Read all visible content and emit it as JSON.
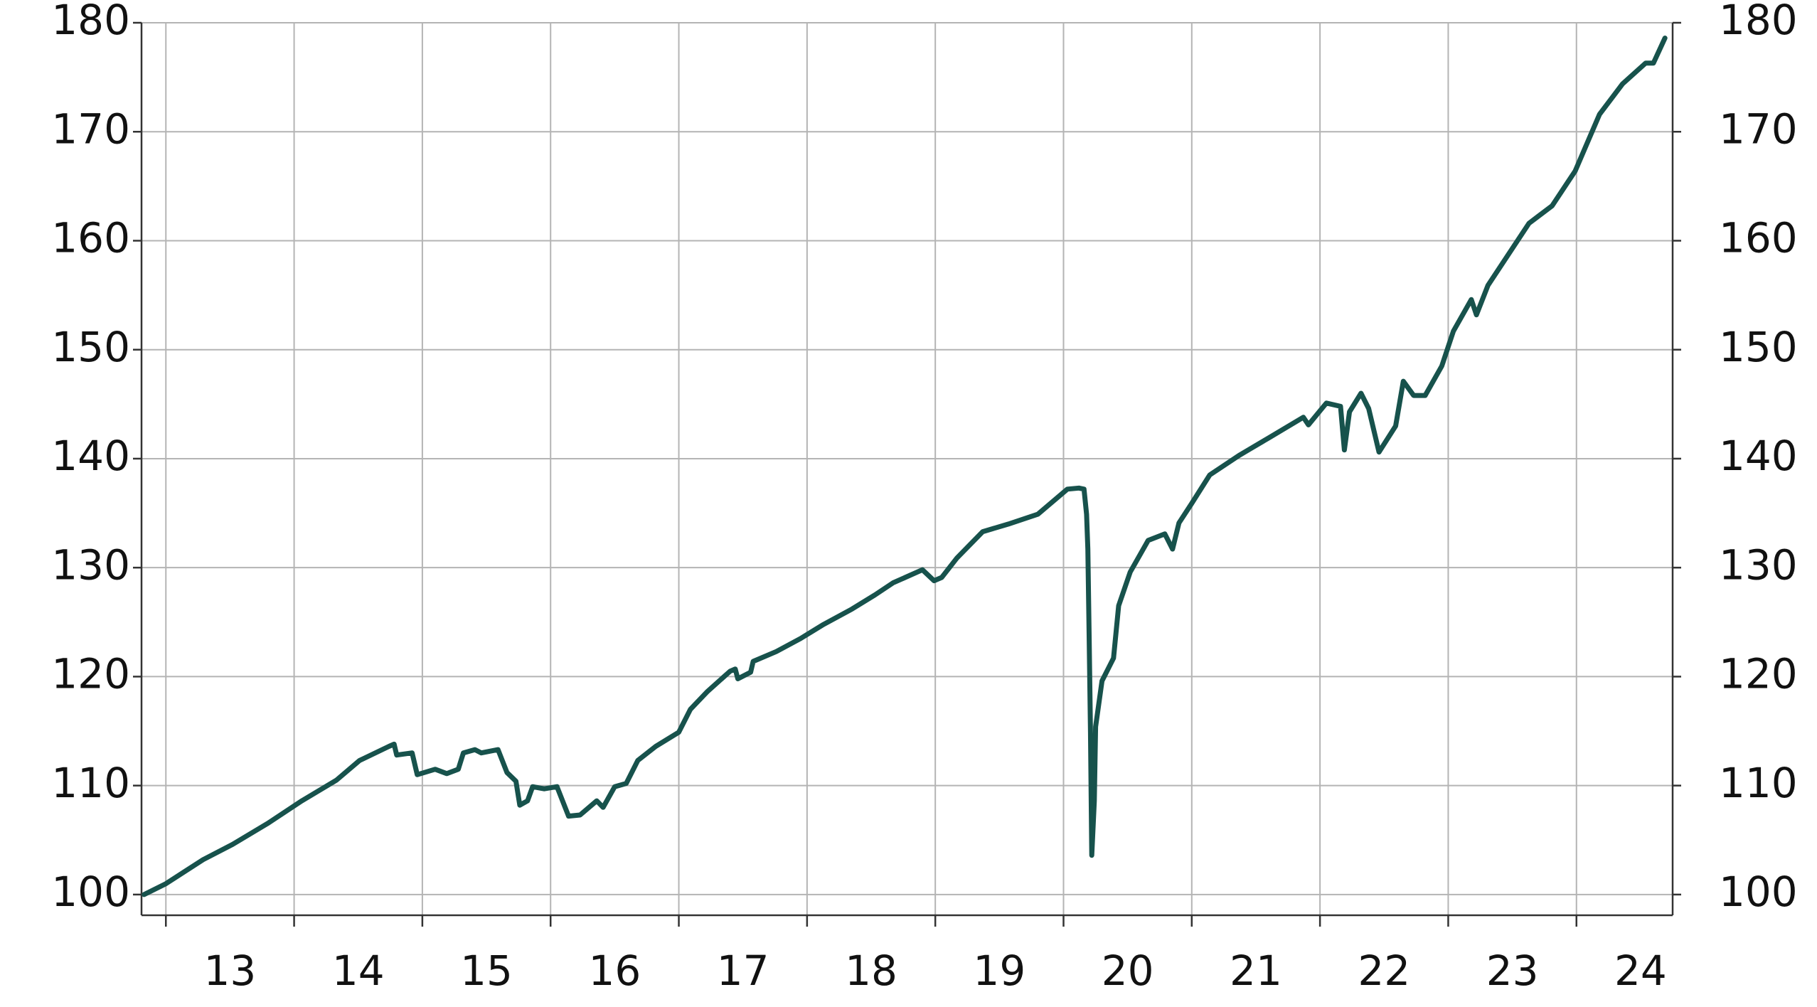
{
  "chart_data": {
    "type": "line",
    "x": [
      12.83,
      13.0,
      13.29,
      13.52,
      13.79,
      14.06,
      14.33,
      14.51,
      14.74,
      14.78,
      14.8,
      14.92,
      14.96,
      15.1,
      15.19,
      15.28,
      15.32,
      15.41,
      15.46,
      15.59,
      15.66,
      15.73,
      15.76,
      15.82,
      15.86,
      15.95,
      16.05,
      16.14,
      16.23,
      16.36,
      16.41,
      16.5,
      16.59,
      16.68,
      16.82,
      17.0,
      17.09,
      17.22,
      17.4,
      17.44,
      17.46,
      17.56,
      17.58,
      17.76,
      17.95,
      18.13,
      18.35,
      18.53,
      18.67,
      18.9,
      18.99,
      19.05,
      19.17,
      19.37,
      19.57,
      19.8,
      20.03,
      20.12,
      20.16,
      20.18,
      20.19,
      20.2,
      20.21,
      20.22,
      20.24,
      20.25,
      20.3,
      20.39,
      20.43,
      20.52,
      20.66,
      20.79,
      20.85,
      20.9,
      21.0,
      21.14,
      21.37,
      21.6,
      21.87,
      21.91,
      22.05,
      22.16,
      22.19,
      22.23,
      22.32,
      22.38,
      22.46,
      22.59,
      22.65,
      22.73,
      22.82,
      22.95,
      23.04,
      23.18,
      23.22,
      23.31,
      23.63,
      23.81,
      23.99,
      24.18,
      24.36,
      24.54,
      24.6,
      24.69
    ],
    "series": [
      {
        "color": "#17524c",
        "values": [
          100,
          101,
          103.2,
          104.6,
          106.5,
          108.6,
          110.5,
          112.3,
          113.6,
          113.8,
          112.8,
          113,
          111,
          111.5,
          111.1,
          111.5,
          113,
          113.3,
          113,
          113.3,
          111.2,
          110.4,
          108.2,
          108.6,
          109.9,
          109.7,
          109.9,
          107.2,
          107.3,
          108.6,
          108,
          109.9,
          110.2,
          112.3,
          113.6,
          114.9,
          117,
          118.6,
          120.5,
          120.7,
          119.8,
          120.4,
          121.4,
          122.3,
          123.5,
          124.8,
          126.2,
          127.5,
          128.6,
          129.8,
          128.8,
          129.1,
          130.9,
          133.3,
          134,
          134.9,
          137.2,
          137.3,
          137.2,
          134.9,
          131.7,
          123.3,
          114.9,
          103.6,
          108.6,
          115.4,
          119.6,
          121.7,
          126.5,
          129.6,
          132.5,
          133.1,
          131.7,
          134.1,
          135.9,
          138.5,
          140.3,
          141.9,
          143.8,
          143.1,
          145.1,
          144.8,
          140.8,
          144.3,
          146,
          144.6,
          140.6,
          143,
          147.1,
          145.8,
          145.8,
          148.5,
          151.7,
          154.6,
          153.2,
          155.9,
          161.6,
          163.2,
          166.4,
          171.6,
          174.4,
          176.3,
          176.3,
          178.6
        ]
      }
    ],
    "xlim": [
      12.81,
      24.75
    ],
    "xticks": [
      {
        "value": 13.5,
        "label": "13"
      },
      {
        "value": 14.5,
        "label": "14"
      },
      {
        "value": 15.5,
        "label": "15"
      },
      {
        "value": 16.5,
        "label": "16"
      },
      {
        "value": 17.5,
        "label": "17"
      },
      {
        "value": 18.5,
        "label": "18"
      },
      {
        "value": 19.5,
        "label": "19"
      },
      {
        "value": 20.5,
        "label": "20"
      },
      {
        "value": 21.5,
        "label": "21"
      },
      {
        "value": 22.5,
        "label": "22"
      },
      {
        "value": 23.5,
        "label": "23"
      },
      {
        "value": 24.5,
        "label": "24"
      }
    ],
    "x_gridlines": [
      13,
      14,
      15,
      16,
      17,
      18,
      19,
      20,
      21,
      22,
      23,
      24
    ],
    "ylim": [
      98.1,
      180
    ],
    "yticks": [
      100,
      110,
      120,
      130,
      140,
      150,
      160,
      170,
      180
    ],
    "y2lim": [
      98.1,
      180
    ],
    "y2ticks": [
      100,
      110,
      120,
      130,
      140,
      150,
      160,
      170,
      180
    ],
    "grid": true
  }
}
